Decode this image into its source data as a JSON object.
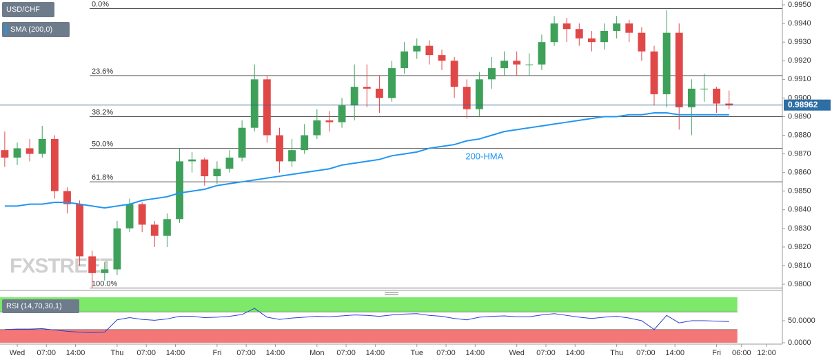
{
  "chart_data": [
    {
      "type": "candlestick",
      "symbol": "USD/CHF",
      "watermark": "FXSTREET",
      "x": [
        -3,
        0,
        3,
        6,
        9,
        12,
        15,
        18,
        21,
        24,
        27,
        30,
        33,
        36,
        39,
        42,
        45,
        48,
        51,
        54,
        57,
        60,
        63,
        66,
        69,
        72,
        75,
        78,
        81,
        84,
        87,
        90,
        93,
        96,
        99,
        102,
        105,
        108,
        111,
        114,
        117,
        120,
        123,
        126,
        129,
        132,
        135,
        138,
        141,
        144,
        147,
        150,
        153,
        156,
        159,
        162,
        165,
        168,
        171
      ],
      "open": [
        0.9872,
        0.9868,
        0.9873,
        0.987,
        0.9878,
        0.985,
        0.9843,
        0.9815,
        0.9806,
        0.9808,
        0.983,
        0.9843,
        0.9832,
        0.9826,
        0.9835,
        0.9866,
        0.9867,
        0.9858,
        0.9862,
        0.9868,
        0.9884,
        0.991,
        0.988,
        0.9866,
        0.9872,
        0.988,
        0.9888,
        0.9887,
        0.9896,
        0.9906,
        0.9905,
        0.99,
        0.9916,
        0.9925,
        0.9928,
        0.9923,
        0.992,
        0.9906,
        0.9894,
        0.991,
        0.9916,
        0.992,
        0.9918,
        0.9918,
        0.993,
        0.994,
        0.9937,
        0.9932,
        0.993,
        0.9936,
        0.994,
        0.9935,
        0.9925,
        0.9902,
        0.9935,
        0.9895,
        0.9905,
        0.9905,
        0.9897
      ],
      "high": [
        0.9882,
        0.9876,
        0.9878,
        0.9885,
        0.988,
        0.9852,
        0.9845,
        0.9818,
        0.9812,
        0.9834,
        0.9846,
        0.9844,
        0.9834,
        0.9838,
        0.9873,
        0.9871,
        0.9868,
        0.9866,
        0.9872,
        0.9888,
        0.9918,
        0.9912,
        0.9884,
        0.9878,
        0.9886,
        0.9894,
        0.9893,
        0.99,
        0.9918,
        0.9918,
        0.9912,
        0.992,
        0.993,
        0.9932,
        0.9931,
        0.9926,
        0.9922,
        0.991,
        0.9914,
        0.9922,
        0.9925,
        0.9925,
        0.9924,
        0.9934,
        0.9944,
        0.9943,
        0.994,
        0.9936,
        0.994,
        0.9944,
        0.9942,
        0.9938,
        0.9928,
        0.9947,
        0.994,
        0.991,
        0.9913,
        0.9906,
        0.9904
      ],
      "low": [
        0.9863,
        0.9864,
        0.9866,
        0.9868,
        0.9846,
        0.9838,
        0.981,
        0.9798,
        0.9802,
        0.9805,
        0.9828,
        0.9828,
        0.982,
        0.982,
        0.9833,
        0.986,
        0.9853,
        0.9854,
        0.986,
        0.9866,
        0.9882,
        0.9876,
        0.986,
        0.9863,
        0.987,
        0.9878,
        0.9882,
        0.9884,
        0.9888,
        0.9895,
        0.9892,
        0.9898,
        0.9913,
        0.9921,
        0.9918,
        0.9915,
        0.99,
        0.9889,
        0.989,
        0.9905,
        0.9912,
        0.9912,
        0.9912,
        0.9915,
        0.9928,
        0.993,
        0.9928,
        0.9925,
        0.9926,
        0.9932,
        0.993,
        0.992,
        0.9896,
        0.9895,
        0.9883,
        0.988,
        0.9898,
        0.9892,
        0.9894
      ],
      "close": [
        0.9868,
        0.9873,
        0.987,
        0.9878,
        0.985,
        0.9843,
        0.9815,
        0.9806,
        0.9808,
        0.983,
        0.9843,
        0.9832,
        0.9826,
        0.9835,
        0.9866,
        0.9867,
        0.9858,
        0.9862,
        0.9868,
        0.9884,
        0.991,
        0.988,
        0.9866,
        0.9872,
        0.988,
        0.9888,
        0.9887,
        0.9896,
        0.9906,
        0.9905,
        0.99,
        0.9916,
        0.9925,
        0.9928,
        0.9923,
        0.992,
        0.9906,
        0.9894,
        0.991,
        0.9916,
        0.992,
        0.9918,
        0.9918,
        0.993,
        0.994,
        0.9937,
        0.9932,
        0.993,
        0.9936,
        0.994,
        0.9935,
        0.9925,
        0.9902,
        0.9935,
        0.9895,
        0.9905,
        0.9905,
        0.9897,
        0.9896
      ],
      "up_color": "#3ea15a",
      "down_color": "#e04848",
      "series": [
        {
          "name": "SMA (200,0)",
          "color": "#2196f3",
          "annotation": "200-HMA",
          "values": [
            0.9842,
            0.9842,
            0.9843,
            0.9843,
            0.9844,
            0.9844,
            0.9843,
            0.9842,
            0.9841,
            0.9842,
            0.9843,
            0.9845,
            0.9846,
            0.9847,
            0.9849,
            0.985,
            0.9851,
            0.9853,
            0.9854,
            0.9855,
            0.9856,
            0.9857,
            0.9858,
            0.9859,
            0.986,
            0.9861,
            0.9862,
            0.9864,
            0.9865,
            0.9866,
            0.9867,
            0.9869,
            0.987,
            0.9871,
            0.9873,
            0.9874,
            0.9875,
            0.9877,
            0.9878,
            0.988,
            0.9882,
            0.9883,
            0.9884,
            0.9885,
            0.9886,
            0.9887,
            0.9888,
            0.9889,
            0.989,
            0.989,
            0.9891,
            0.9891,
            0.9892,
            0.9892,
            0.9891,
            0.9891,
            0.9891,
            0.9891,
            0.9891
          ]
        }
      ],
      "levels": [
        {
          "label": "0.0%",
          "value": 0.9948
        },
        {
          "label": "23.6%",
          "value": 0.9912
        },
        {
          "label": "38.2%",
          "value": 0.989
        },
        {
          "label": "50.0%",
          "value": 0.9873
        },
        {
          "label": "61.8%",
          "value": 0.9855
        },
        {
          "label": "100.0%",
          "value": 0.9798
        }
      ],
      "last_price": 0.98962,
      "ylim": [
        0.97967,
        0.99526
      ],
      "yticks": [
        {
          "value": 0.98,
          "label": "0.9800"
        },
        {
          "value": 0.981,
          "label": "0.9810"
        },
        {
          "value": 0.982,
          "label": "0.9820"
        },
        {
          "value": 0.983,
          "label": "0.9830"
        },
        {
          "value": 0.984,
          "label": "0.9840"
        },
        {
          "value": 0.985,
          "label": "0.9850"
        },
        {
          "value": 0.986,
          "label": "0.9860"
        },
        {
          "value": 0.987,
          "label": "0.9870"
        },
        {
          "value": 0.988,
          "label": "0.9880"
        },
        {
          "value": 0.989,
          "label": "0.9890"
        },
        {
          "value": 0.99,
          "label": "0.9900"
        },
        {
          "value": 0.991,
          "label": "0.9910"
        },
        {
          "value": 0.992,
          "label": "0.9920"
        },
        {
          "value": 0.993,
          "label": "0.9930"
        },
        {
          "value": 0.994,
          "label": "0.9940"
        },
        {
          "value": 0.995,
          "label": "0.9950"
        }
      ],
      "xlim": [
        -4.14,
        183.8
      ],
      "xticks": [
        {
          "value": 0,
          "label": "Wed"
        },
        {
          "value": 7,
          "label": "07:00"
        },
        {
          "value": 14,
          "label": "14:00"
        },
        {
          "value": 24,
          "label": "Thu"
        },
        {
          "value": 31,
          "label": "07:00"
        },
        {
          "value": 38,
          "label": "14:00"
        },
        {
          "value": 48,
          "label": "Fri"
        },
        {
          "value": 55,
          "label": "07:00"
        },
        {
          "value": 62,
          "label": "14:00"
        },
        {
          "value": 72,
          "label": "Mon"
        },
        {
          "value": 79,
          "label": "07:00"
        },
        {
          "value": 86,
          "label": "14:00"
        },
        {
          "value": 96,
          "label": "Tue"
        },
        {
          "value": 103,
          "label": "07:00"
        },
        {
          "value": 110,
          "label": "14:00"
        },
        {
          "value": 120,
          "label": "Wed"
        },
        {
          "value": 127,
          "label": "07:00"
        },
        {
          "value": 134,
          "label": "14:00"
        },
        {
          "value": 144,
          "label": "Thu"
        },
        {
          "value": 151,
          "label": "07:00"
        },
        {
          "value": 158,
          "label": "14:00"
        },
        {
          "value": 168,
          "label": "Fri"
        },
        {
          "value": 174,
          "label": "06:00"
        },
        {
          "value": 180,
          "label": "12:00"
        }
      ]
    },
    {
      "type": "line",
      "title": "RSI (14,70,30,1)",
      "color": "#2a3fd0",
      "values": [
        30,
        31,
        31,
        32,
        29,
        26,
        24,
        23,
        24,
        52,
        57,
        53,
        51,
        54,
        60,
        60,
        57,
        58,
        60,
        64,
        78,
        58,
        53,
        56,
        58,
        60,
        59,
        61,
        63,
        62,
        60,
        63,
        65,
        66,
        62,
        60,
        55,
        52,
        58,
        60,
        61,
        59,
        59,
        63,
        66,
        62,
        58,
        55,
        58,
        60,
        56,
        50,
        30,
        62,
        45,
        50,
        50,
        49,
        48
      ],
      "overbought": 70,
      "overbought_color": "#7de86a",
      "oversold": 30,
      "oversold_color": "#f47777",
      "ylim": [
        0,
        103.1
      ],
      "yticks": [
        {
          "value": 0,
          "label": "0.0000"
        },
        {
          "value": 50,
          "label": "50.0000"
        }
      ]
    }
  ]
}
